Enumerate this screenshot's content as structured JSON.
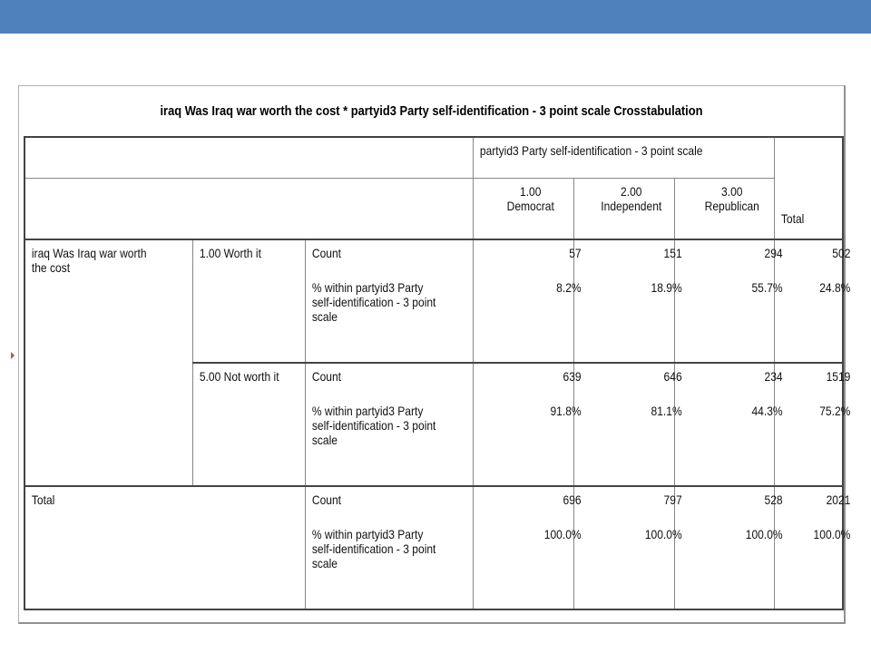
{
  "table": {
    "title": "iraq Was Iraq war worth the cost * partyid3 Party self-identification - 3 point scale Crosstabulation",
    "column_group_label": "partyid3 Party self-identification - 3 point scale",
    "columns": [
      {
        "code": "1.00",
        "label": "Democrat"
      },
      {
        "code": "2.00",
        "label": "Independent"
      },
      {
        "code": "3.00",
        "label": "Republican"
      }
    ],
    "total_label": "Total",
    "row_variable_label_line1": "iraq Was Iraq war worth",
    "row_variable_label_line2": "the cost",
    "stat_count_label": "Count",
    "stat_pct_label_line1": "% within partyid3 Party",
    "stat_pct_label_line2": "self-identification - 3 point",
    "stat_pct_label_line3": "scale",
    "rows": [
      {
        "category": "1.00 Worth it",
        "count": [
          "57",
          "151",
          "294",
          "502"
        ],
        "pct": [
          "8.2%",
          "18.9%",
          "55.7%",
          "24.8%"
        ]
      },
      {
        "category": "5.00 Not worth it",
        "count": [
          "639",
          "646",
          "234",
          "1519"
        ],
        "pct": [
          "91.8%",
          "81.1%",
          "44.3%",
          "75.2%"
        ]
      }
    ],
    "total_row": {
      "label": "Total",
      "count": [
        "696",
        "797",
        "528",
        "2021"
      ],
      "pct": [
        "100.0%",
        "100.0%",
        "100.0%",
        "100.0%"
      ]
    }
  },
  "colors": {
    "header_bar": "#4f81bd",
    "marker": "#c0504d"
  }
}
